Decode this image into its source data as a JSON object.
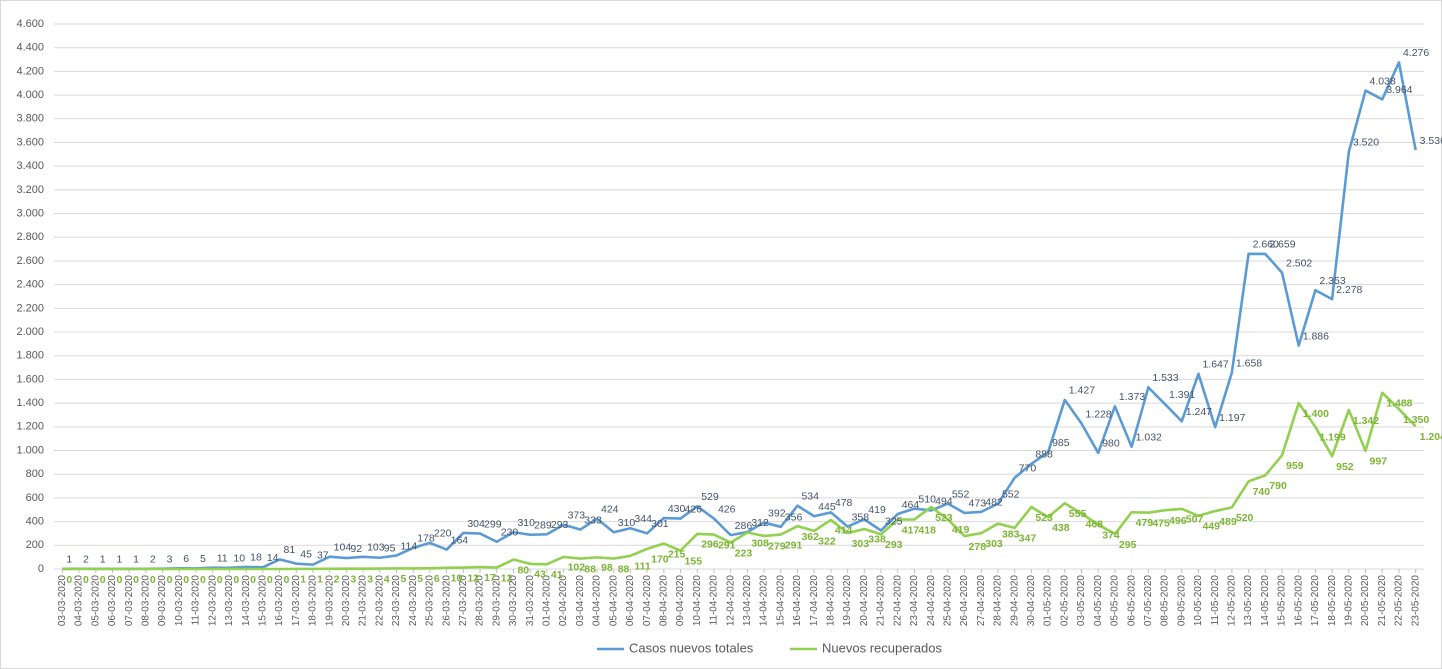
{
  "chart_data": {
    "type": "line",
    "categories": [
      "03-03-2020",
      "04-03-2020",
      "05-03-2020",
      "06-03-2020",
      "07-03-2020",
      "08-03-2020",
      "09-03-2020",
      "10-03-2020",
      "11-03-2020",
      "12-03-2020",
      "13-03-2020",
      "14-03-2020",
      "15-03-2020",
      "16-03-2020",
      "17-03-2020",
      "18-03-2020",
      "19-03-2020",
      "20-03-2020",
      "21-03-2020",
      "22-03-2020",
      "23-03-2020",
      "24-03-2020",
      "25-03-2020",
      "26-03-2020",
      "27-03-2020",
      "28-03-2020",
      "29-03-2020",
      "30-03-2020",
      "31-03-2020",
      "01-04-2020",
      "02-04-2020",
      "03-04-2020",
      "04-04-2020",
      "05-04-2020",
      "06-04-2020",
      "07-04-2020",
      "08-04-2020",
      "09-04-2020",
      "10-04-2020",
      "11-04-2020",
      "12-04-2020",
      "13-04-2020",
      "14-04-2020",
      "15-04-2020",
      "16-04-2020",
      "17-04-2020",
      "18-04-2020",
      "19-04-2020",
      "20-04-2020",
      "21-04-2020",
      "22-04-2020",
      "23-04-2020",
      "24-04-2020",
      "25-04-2020",
      "26-04-2020",
      "27-04-2020",
      "28-04-2020",
      "29-04-2020",
      "30-04-2020",
      "01-05-2020",
      "02-05-2020",
      "03-05-2020",
      "04-05-2020",
      "05-05-2020",
      "06-05-2020",
      "07-05-2020",
      "08-05-2020",
      "09-05-2020",
      "10-05-2020",
      "11-05-2020",
      "12-05-2020",
      "13-05-2020",
      "14-05-2020",
      "15-05-2020",
      "16-05-2020",
      "17-05-2020",
      "18-05-2020",
      "19-05-2020",
      "20-05-2020",
      "21-05-2020",
      "22-05-2020",
      "23-05-2020"
    ],
    "series": [
      {
        "name": "Casos nuevos totales",
        "color": "#5b9bd5",
        "values": [
          1,
          2,
          1,
          1,
          1,
          2,
          3,
          6,
          5,
          11,
          10,
          18,
          14,
          81,
          45,
          37,
          104,
          92,
          103,
          95,
          114,
          178,
          220,
          164,
          304,
          299,
          230,
          310,
          289,
          293,
          373,
          333,
          424,
          310,
          344,
          301,
          430,
          426,
          529,
          426,
          286,
          312,
          392,
          356,
          534,
          445,
          478,
          358,
          419,
          325,
          464,
          510,
          494,
          552,
          473,
          482,
          552,
          770,
          888,
          985,
          1427,
          1228,
          980,
          1373,
          1032,
          1533,
          1391,
          1247,
          1647,
          1197,
          1658,
          2660,
          2659,
          2502,
          1886,
          2353,
          2278,
          3520,
          4038,
          3964,
          4276,
          3536
        ],
        "value_labels": [
          "1",
          "2",
          "1",
          "1",
          "1",
          "2",
          "3",
          "6",
          "5",
          "11",
          "10",
          "18",
          "14",
          "81",
          "45",
          "37",
          "104",
          "92",
          "103",
          "95",
          "114",
          "178",
          "220",
          "164",
          "304",
          "299",
          "230",
          "310",
          "289",
          "293",
          "373",
          "333",
          "424",
          "310",
          "344",
          "301",
          "430",
          "426",
          "529",
          "426",
          "286",
          "312",
          "392",
          "356",
          "534",
          "445",
          "478",
          "358",
          "419",
          "325",
          "464",
          "510",
          "494",
          "552",
          "473",
          "482",
          "552",
          "770",
          "888",
          "985",
          "1.427",
          "1.228",
          "980",
          "1.373",
          "1.032",
          "1.533",
          "1.391",
          "1.247",
          "1.647",
          "1.197",
          "1.658",
          "2.660",
          "2.659",
          "2.502",
          "1.886",
          "2.353",
          "2.278",
          "3.520",
          "4.038",
          "3.964",
          "4.276",
          "3.536"
        ]
      },
      {
        "name": "Nuevos recuperados",
        "color": "#92d050",
        "values": [
          0,
          0,
          0,
          0,
          0,
          0,
          0,
          0,
          0,
          0,
          0,
          0,
          0,
          0,
          1,
          1,
          2,
          3,
          3,
          4,
          5,
          5,
          6,
          10,
          12,
          17,
          12,
          80,
          43,
          41,
          102,
          88,
          98,
          88,
          111,
          170,
          215,
          155,
          296,
          291,
          223,
          308,
          279,
          291,
          362,
          322,
          414,
          303,
          338,
          293,
          417,
          418,
          523,
          419,
          278,
          303,
          383,
          347,
          523,
          438,
          555,
          468,
          374,
          295,
          479,
          475,
          496,
          507,
          449,
          489,
          520,
          740,
          790,
          959,
          1400,
          1199,
          952,
          1342,
          997,
          1488,
          1350,
          1204
        ],
        "value_labels": [
          "0",
          "0",
          "0",
          "0",
          "0",
          "0",
          "0",
          "0",
          "0",
          "0",
          "0",
          "0",
          "0",
          "0",
          "1",
          "1",
          "2",
          "3",
          "3",
          "4",
          "5",
          "5",
          "6",
          "10",
          "12",
          "17",
          "12",
          "80",
          "43",
          "41",
          "102",
          "88",
          "98",
          "88",
          "111",
          "170",
          "215",
          "155",
          "296",
          "291",
          "223",
          "308",
          "279",
          "291",
          "362",
          "322",
          "414",
          "303",
          "338",
          "293",
          "417",
          "418",
          "523",
          "419",
          "278",
          "303",
          "383",
          "347",
          "523",
          "438",
          "555",
          "468",
          "374",
          "295",
          "479",
          "475",
          "496",
          "507",
          "449",
          "489",
          "520",
          "740",
          "790",
          "959",
          "1.400",
          "1.199",
          "952",
          "1.342",
          "997",
          "1.488",
          "1.350",
          "1.204"
        ]
      }
    ],
    "ylim": [
      0,
      4600
    ],
    "yticks": [
      0,
      200,
      400,
      600,
      800,
      {
        "value": 1000,
        "label": "1.000"
      },
      {
        "value": 1200,
        "label": "1.200"
      },
      {
        "value": 1400,
        "label": "1.400"
      },
      {
        "value": 1600,
        "label": "1.600"
      },
      {
        "value": 1800,
        "label": "1.800"
      },
      {
        "value": 2000,
        "label": "2.000"
      },
      {
        "value": 2200,
        "label": "2.200"
      },
      {
        "value": 2400,
        "label": "2.400"
      },
      {
        "value": 2600,
        "label": "2.600"
      },
      {
        "value": 2800,
        "label": "2.800"
      },
      {
        "value": 3000,
        "label": "3.000"
      },
      {
        "value": 3200,
        "label": "3.200"
      },
      {
        "value": 3400,
        "label": "3.400"
      },
      {
        "value": 3600,
        "label": "3.600"
      },
      {
        "value": 3800,
        "label": "3.800"
      },
      {
        "value": 4000,
        "label": "4.000"
      },
      {
        "value": 4200,
        "label": "4.200"
      },
      {
        "value": 4400,
        "label": "4.400"
      },
      {
        "value": 4600,
        "label": "4.600"
      }
    ],
    "grid": true,
    "legend": "bottom"
  }
}
